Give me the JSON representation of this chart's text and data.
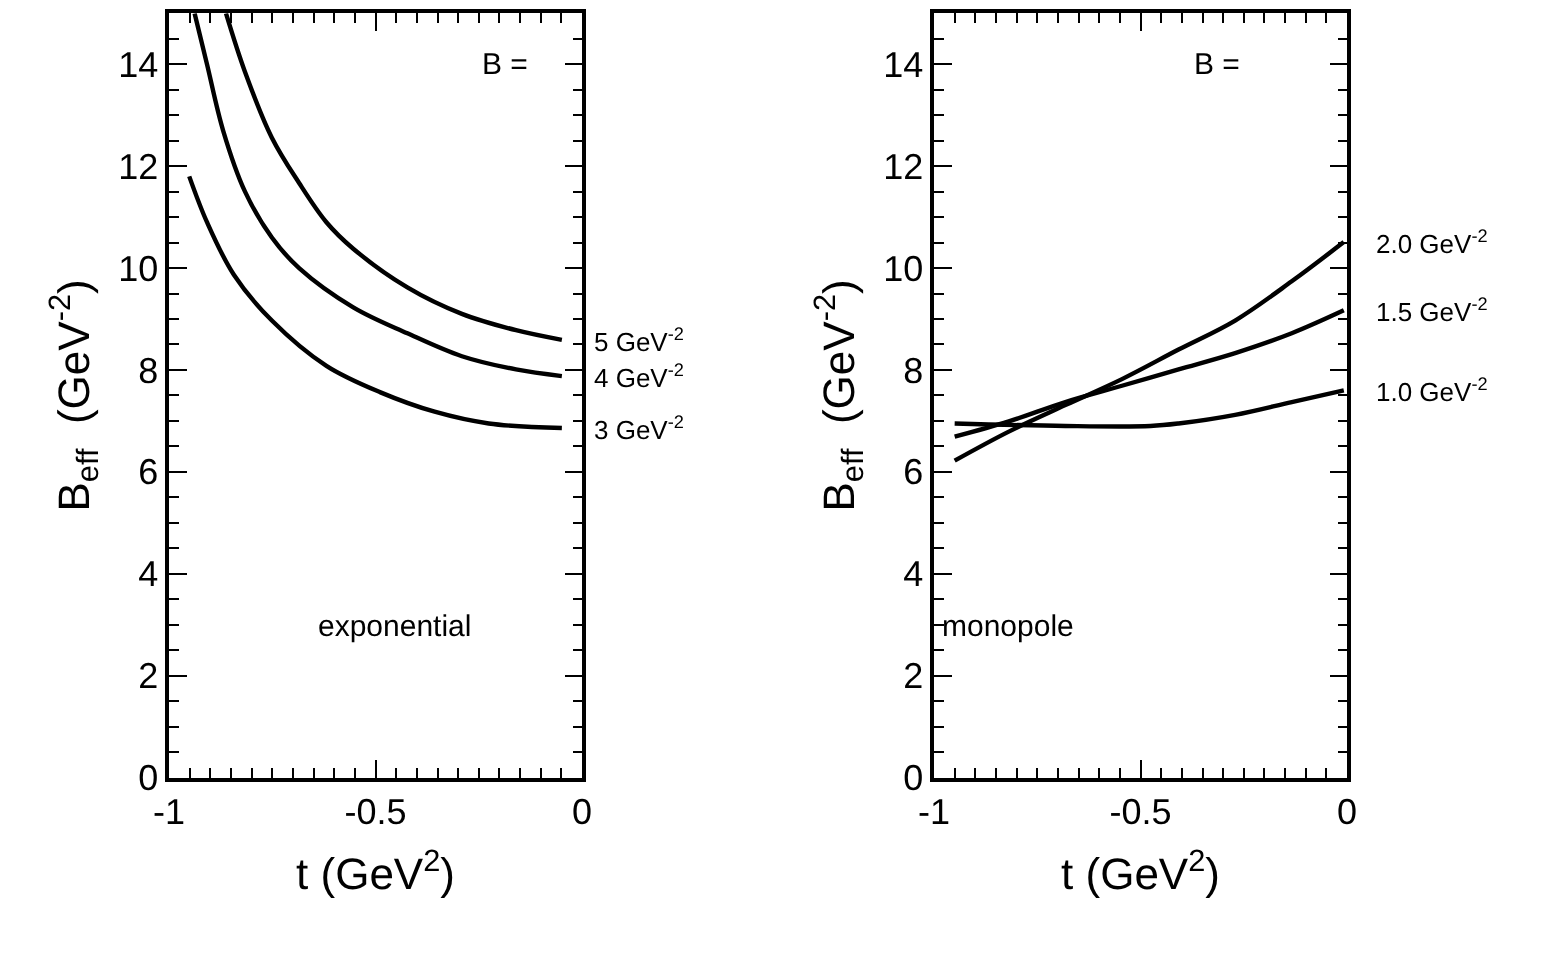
{
  "chart_data": [
    {
      "type": "line",
      "xlabel": "t (GeV$^{2}$)",
      "ylabel": "B$_{eff}$  (GeV$^{-2}$)",
      "annotations": [
        "B =",
        "exponential"
      ],
      "xlim": [
        -1,
        0
      ],
      "ylim": [
        0,
        15
      ],
      "xticks": [
        -1,
        -0.5,
        0
      ],
      "yticks": [
        0,
        2,
        4,
        6,
        8,
        10,
        12,
        14
      ],
      "legend": "right",
      "marker": "none",
      "line_style": "solid",
      "series": [
        {
          "name": "5 GeV$^{-2}$",
          "color": "#000000",
          "x": [
            -0.862,
            -0.816,
            -0.751,
            -0.685,
            -0.619,
            -0.554,
            -0.423,
            -0.291,
            -0.16,
            -0.049
          ],
          "values": [
            15,
            13.85,
            12.56,
            11.67,
            10.9,
            10.38,
            9.62,
            9.1,
            8.78,
            8.59
          ]
        },
        {
          "name": "4 GeV$^{-2}$",
          "color": "#000000",
          "x": [
            -0.938,
            -0.908,
            -0.869,
            -0.816,
            -0.751,
            -0.685,
            -0.554,
            -0.423,
            -0.291,
            -0.16,
            -0.049
          ],
          "values": [
            15,
            14.0,
            12.7,
            11.5,
            10.6,
            10.0,
            9.23,
            8.72,
            8.27,
            8.01,
            7.88
          ]
        },
        {
          "name": "3 GeV$^{-2}$",
          "color": "#000000",
          "x": [
            -0.951,
            -0.908,
            -0.843,
            -0.751,
            -0.619,
            -0.488,
            -0.357,
            -0.226,
            -0.049
          ],
          "values": [
            11.8,
            10.9,
            9.87,
            8.97,
            8.08,
            7.56,
            7.18,
            6.95,
            6.86
          ]
        }
      ]
    },
    {
      "type": "line",
      "xlabel": "t (GeV$^{2}$)",
      "ylabel": "B$_{eff}$  (GeV$^{-2}$)",
      "annotations": [
        "B =",
        "monopole"
      ],
      "xlim": [
        -1,
        0
      ],
      "ylim": [
        0,
        15
      ],
      "xticks": [
        -1,
        -0.5,
        0
      ],
      "yticks": [
        0,
        2,
        4,
        6,
        8,
        10,
        12,
        14
      ],
      "legend": "right",
      "marker": "none",
      "line_style": "solid",
      "series": [
        {
          "name": "2.0 GeV$^{-2}$",
          "color": "#000000",
          "x": [
            -0.95,
            -0.819,
            -0.682,
            -0.545,
            -0.408,
            -0.271,
            -0.134,
            -0.008
          ],
          "values": [
            6.22,
            6.79,
            7.31,
            7.82,
            8.4,
            8.97,
            9.74,
            10.51
          ]
        },
        {
          "name": "1.5 GeV$^{-2}$",
          "color": "#000000",
          "x": [
            -0.95,
            -0.819,
            -0.682,
            -0.545,
            -0.408,
            -0.271,
            -0.134,
            -0.008
          ],
          "values": [
            6.69,
            6.99,
            7.37,
            7.69,
            8.01,
            8.33,
            8.72,
            9.17
          ]
        },
        {
          "name": "1.0 GeV$^{-2}$",
          "color": "#000000",
          "x": [
            -0.95,
            -0.682,
            -0.476,
            -0.408,
            -0.271,
            -0.134,
            -0.008
          ],
          "values": [
            6.95,
            6.9,
            6.9,
            6.95,
            7.12,
            7.37,
            7.6
          ]
        }
      ]
    }
  ]
}
